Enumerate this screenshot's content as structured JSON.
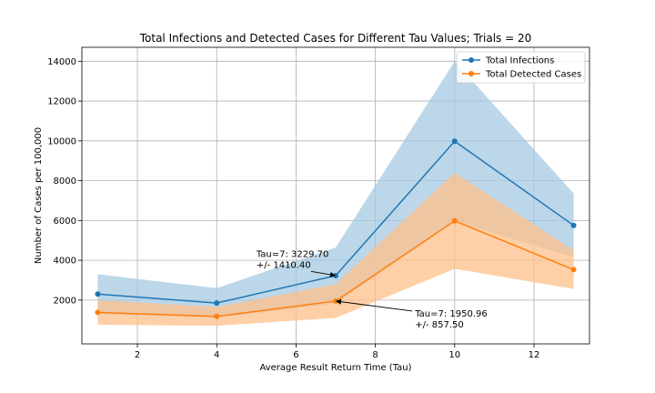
{
  "chart_data": {
    "type": "line",
    "title": "Total Infections and Detected Cases for Different Tau Values; Trials = 20",
    "xlabel": "Average Result Return Time (Tau)",
    "ylabel": "Number of Cases per 100,000",
    "xlim": [
      0.6,
      13.4
    ],
    "ylim": [
      -200,
      14700
    ],
    "xticks": [
      2,
      4,
      6,
      8,
      10,
      12
    ],
    "yticks": [
      2000,
      4000,
      6000,
      8000,
      10000,
      12000,
      14000
    ],
    "grid": true,
    "legend_position": "top-right",
    "x": [
      1,
      4,
      7,
      10,
      13
    ],
    "series": [
      {
        "name": "Total Infections",
        "color": "#1f77b4",
        "band_color": "#a6c9e3",
        "values": [
          2300,
          1850,
          3229.7,
          9980,
          5750
        ],
        "band_upper": [
          3300,
          2600,
          4640,
          14000,
          7350
        ],
        "band_lower": [
          1300,
          1100,
          1820,
          5960,
          4150
        ]
      },
      {
        "name": "Total Detected Cases",
        "color": "#ff7f0e",
        "band_color": "#ffc08a",
        "values": [
          1380,
          1180,
          1950.96,
          5980,
          3530
        ],
        "band_upper": [
          2000,
          1650,
          2800,
          8400,
          4500
        ],
        "band_lower": [
          760,
          710,
          1100,
          3570,
          2560
        ]
      }
    ],
    "annotations": [
      {
        "line1": "Tau=7: 3229.70",
        "line2": "+/- 1410.40",
        "x": 7,
        "y": 3229.7,
        "text_x": 5.0,
        "text_y": 3900
      },
      {
        "line1": "Tau=7: 1950.96",
        "line2": "+/- 857.50",
        "x": 7,
        "y": 1950.96,
        "text_x": 9.0,
        "text_y": 900
      }
    ]
  }
}
